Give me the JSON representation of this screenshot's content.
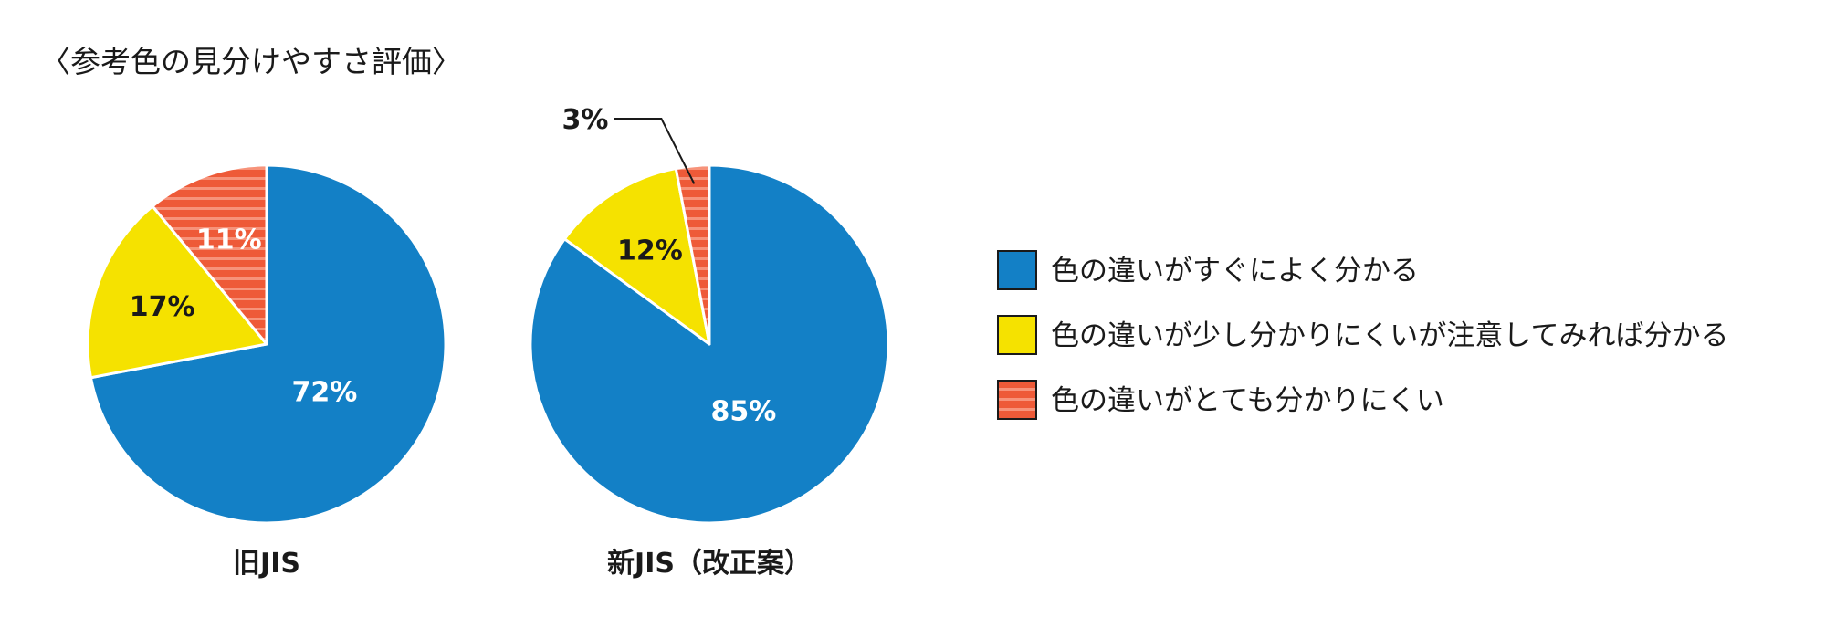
{
  "chart_title": "〈参考色の見分けやすさ評価〉",
  "colors": {
    "blue": "#1380C6",
    "yellow": "#F5E200",
    "red": "#EE5A38",
    "red_stripe": "#F7937A"
  },
  "chart_data": [
    {
      "type": "pie",
      "title": "旧JIS",
      "slices": [
        {
          "name": "色の違いがすぐによく分かる",
          "value": 72,
          "label": "72%",
          "color": "#1380C6"
        },
        {
          "name": "色の違いが少し分かりにくいが注意してみれば分かる",
          "value": 17,
          "label": "17%",
          "color": "#F5E200"
        },
        {
          "name": "色の違いがとても分かりにくい",
          "value": 11,
          "label": "11%",
          "color": "#EE5A38",
          "pattern": "stripes"
        }
      ],
      "start": "top, clockwise"
    },
    {
      "type": "pie",
      "title": "新JIS（改正案）",
      "slices": [
        {
          "name": "色の違いがすぐによく分かる",
          "value": 85,
          "label": "85%",
          "color": "#1380C6"
        },
        {
          "name": "色の違いが少し分かりにくいが注意してみれば分かる",
          "value": 12,
          "label": "12%",
          "color": "#F5E200"
        },
        {
          "name": "色の違いがとても分かりにくい",
          "value": 3,
          "label": "3%",
          "color": "#EE5A38",
          "pattern": "stripes",
          "callout": true
        }
      ],
      "start": "top, clockwise"
    }
  ],
  "legend": {
    "placement": "right",
    "items": [
      {
        "label": "色の違いがすぐによく分かる",
        "color": "#1380C6"
      },
      {
        "label": "色の違いが少し分かりにくいが注意してみれば分かる",
        "color": "#F5E200"
      },
      {
        "label": "色の違いがとても分かりにくい",
        "color": "#EE5A38",
        "pattern": "stripes"
      }
    ]
  }
}
